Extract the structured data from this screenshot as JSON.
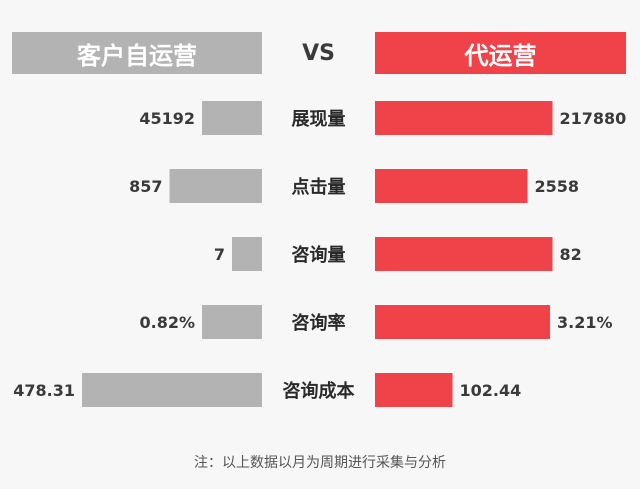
{
  "header": {
    "left_label": "客户自运营",
    "vs_label": "VS",
    "right_label": "代运营"
  },
  "colors": {
    "left_bar": "#b3b3b3",
    "right_bar": "#ef4349",
    "value_text": "#3a3a3a",
    "category_text": "#2a2a2a",
    "background": "#f7f7f7"
  },
  "chart_data": {
    "type": "bar",
    "orientation": "horizontal-butterfly",
    "categories": [
      "展现量",
      "点击量",
      "咨询量",
      "咨询率",
      "咨询成本"
    ],
    "series": [
      {
        "name": "客户自运营",
        "values": [
          45192,
          857,
          7,
          0.82,
          478.31
        ],
        "labels": [
          "45192",
          "857",
          "7",
          "0.82%",
          "478.31"
        ],
        "bar_fraction": [
          0.24,
          0.37,
          0.12,
          0.24,
          0.72
        ]
      },
      {
        "name": "代运营",
        "values": [
          217880,
          2558,
          82,
          3.21,
          102.44
        ],
        "labels": [
          "217880",
          "2558",
          "82",
          "3.21%",
          "102.44"
        ],
        "bar_fraction": [
          0.71,
          0.61,
          0.71,
          0.7,
          0.31
        ]
      }
    ]
  },
  "footnote": "注：以上数据以月为周期进行采集与分析"
}
